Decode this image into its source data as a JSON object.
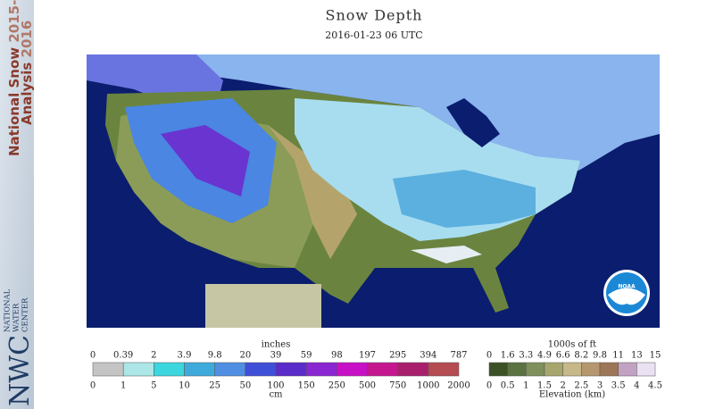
{
  "title": "Snow Depth",
  "subtitle": "2016-01-23 06 UTC",
  "sidebar": {
    "line1": "National Snow",
    "years1": "2015-",
    "line2": "Analysis",
    "years2": "2016",
    "logo": "NWC",
    "org": [
      "NATIONAL",
      "WATER",
      "CENTER"
    ]
  },
  "map": {
    "logo": "NOAA"
  },
  "snow_legend": {
    "unit_top": "inches",
    "unit_bottom": "cm",
    "top_labels": [
      "0",
      "0.39",
      "2",
      "3.9",
      "9.8",
      "20",
      "39",
      "59",
      "98",
      "197",
      "295",
      "394",
      "787"
    ],
    "bottom_labels": [
      "0",
      "1",
      "5",
      "10",
      "25",
      "50",
      "100",
      "150",
      "250",
      "500",
      "750",
      "1000",
      "2000"
    ],
    "colors": [
      "#c4c4c4",
      "#ade6e6",
      "#3cd6de",
      "#3eaadb",
      "#4f8ee2",
      "#3f4fd8",
      "#5a2cca",
      "#8a26d2",
      "#c810c6",
      "#c4168e",
      "#a8206c",
      "#b44c52"
    ]
  },
  "elevation_legend": {
    "unit_top": "1000s of ft",
    "unit_bottom": "Elevation (km)",
    "top_labels": [
      "0",
      "1.6",
      "3.3",
      "4.9",
      "6.6",
      "8.2",
      "9.8",
      "11",
      "13",
      "15"
    ],
    "bottom_labels": [
      "0",
      "0.5",
      "1",
      "1.5",
      "2",
      "2.5",
      "3",
      "3.5",
      "4",
      "4.5"
    ],
    "colors": [
      "#3c5226",
      "#5b7242",
      "#7f905c",
      "#a6a66e",
      "#c6b888",
      "#b6966e",
      "#9c7656",
      "#c2a2c2",
      "#eae2f2"
    ]
  }
}
